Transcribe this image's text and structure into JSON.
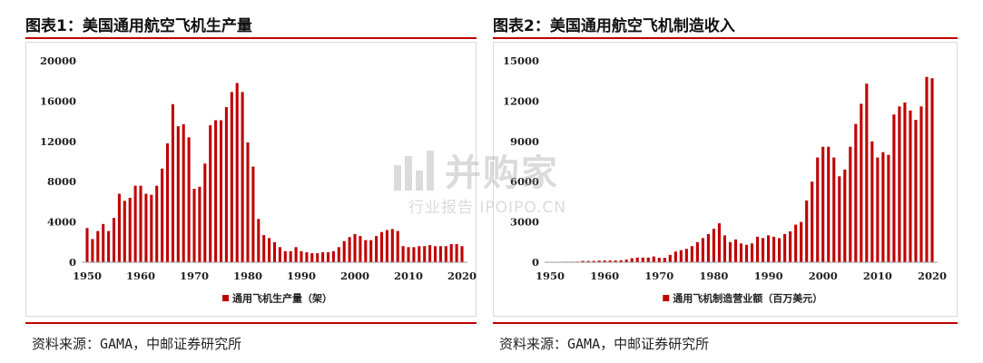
{
  "figures": [
    {
      "title": "图表1：美国通用航空飞机生产量",
      "source": "资料来源：GAMA，中邮证券研究所"
    },
    {
      "title": "图表2：美国通用航空飞机制造收入",
      "source": "资料来源：GAMA，中邮证券研究所"
    }
  ],
  "watermark": {
    "brand": "并购家",
    "subtitle": "行业报告 IPOIPO.CN"
  },
  "colors": {
    "bar": "#c00000",
    "rule": "#c00000",
    "axis": "#999999"
  },
  "chart_data": [
    {
      "type": "bar",
      "title": "图表1：美国通用航空飞机生产量",
      "legend": "通用飞机生产量（架）",
      "legend_position": "bottom",
      "ylim": [
        0,
        20000
      ],
      "yticks": [
        0,
        4000,
        8000,
        12000,
        16000,
        20000
      ],
      "xticks": [
        1950,
        1960,
        1970,
        1980,
        1990,
        2000,
        2010,
        2020
      ],
      "x": [
        1950,
        1951,
        1952,
        1953,
        1954,
        1955,
        1956,
        1957,
        1958,
        1959,
        1960,
        1961,
        1962,
        1963,
        1964,
        1965,
        1966,
        1967,
        1968,
        1969,
        1970,
        1971,
        1972,
        1973,
        1974,
        1975,
        1976,
        1977,
        1978,
        1979,
        1980,
        1981,
        1982,
        1983,
        1984,
        1985,
        1986,
        1987,
        1988,
        1989,
        1990,
        1991,
        1992,
        1993,
        1994,
        1995,
        1996,
        1997,
        1998,
        1999,
        2000,
        2001,
        2002,
        2003,
        2004,
        2005,
        2006,
        2007,
        2008,
        2009,
        2010,
        2011,
        2012,
        2013,
        2014,
        2015,
        2016,
        2017,
        2018,
        2019,
        2020
      ],
      "values": [
        3400,
        2300,
        3100,
        3800,
        3100,
        4400,
        6800,
        6100,
        6400,
        7600,
        7600,
        6800,
        6700,
        7600,
        9300,
        11800,
        15700,
        13500,
        13700,
        12400,
        7300,
        7500,
        9800,
        13600,
        14100,
        14100,
        15400,
        16900,
        17800,
        16900,
        11900,
        9500,
        4300,
        2700,
        2400,
        2000,
        1500,
        1100,
        1100,
        1500,
        1100,
        1000,
        900,
        900,
        1000,
        1000,
        1100,
        1500,
        2100,
        2500,
        2800,
        2600,
        2200,
        2200,
        2600,
        3000,
        3200,
        3300,
        3100,
        1600,
        1500,
        1500,
        1600,
        1600,
        1700,
        1600,
        1600,
        1600,
        1800,
        1800,
        1600
      ],
      "grid": false
    },
    {
      "type": "bar",
      "title": "图表2：美国通用航空飞机制造收入",
      "legend": "通用飞机制造营业额（百万美元）",
      "legend_position": "bottom",
      "ylim": [
        0,
        15000
      ],
      "yticks": [
        0,
        3000,
        6000,
        9000,
        12000,
        15000
      ],
      "xticks": [
        1950,
        1960,
        1970,
        1980,
        1990,
        2000,
        2010,
        2020
      ],
      "x": [
        1950,
        1951,
        1952,
        1953,
        1954,
        1955,
        1956,
        1957,
        1958,
        1959,
        1960,
        1961,
        1962,
        1963,
        1964,
        1965,
        1966,
        1967,
        1968,
        1969,
        1970,
        1971,
        1972,
        1973,
        1974,
        1975,
        1976,
        1977,
        1978,
        1979,
        1980,
        1981,
        1982,
        1983,
        1984,
        1985,
        1986,
        1987,
        1988,
        1989,
        1990,
        1991,
        1992,
        1993,
        1994,
        1995,
        1996,
        1997,
        1998,
        1999,
        2000,
        2001,
        2002,
        2003,
        2004,
        2005,
        2006,
        2007,
        2008,
        2009,
        2010,
        2011,
        2012,
        2013,
        2014,
        2015,
        2016,
        2017,
        2018,
        2019,
        2020
      ],
      "values": [
        30,
        30,
        30,
        40,
        40,
        50,
        100,
        100,
        100,
        120,
        130,
        130,
        130,
        150,
        200,
        300,
        350,
        350,
        350,
        430,
        330,
        330,
        550,
        800,
        900,
        1000,
        1200,
        1500,
        1800,
        2100,
        2500,
        2900,
        2000,
        1500,
        1700,
        1400,
        1300,
        1400,
        1900,
        1800,
        2000,
        1900,
        1800,
        2100,
        2300,
        2800,
        3000,
        4600,
        6000,
        7800,
        8600,
        8600,
        7800,
        6400,
        6900,
        8600,
        10300,
        11800,
        13300,
        9000,
        7800,
        8200,
        8000,
        11000,
        11600,
        11900,
        11300,
        10600,
        11600,
        13800,
        13700
      ],
      "grid": false
    }
  ]
}
